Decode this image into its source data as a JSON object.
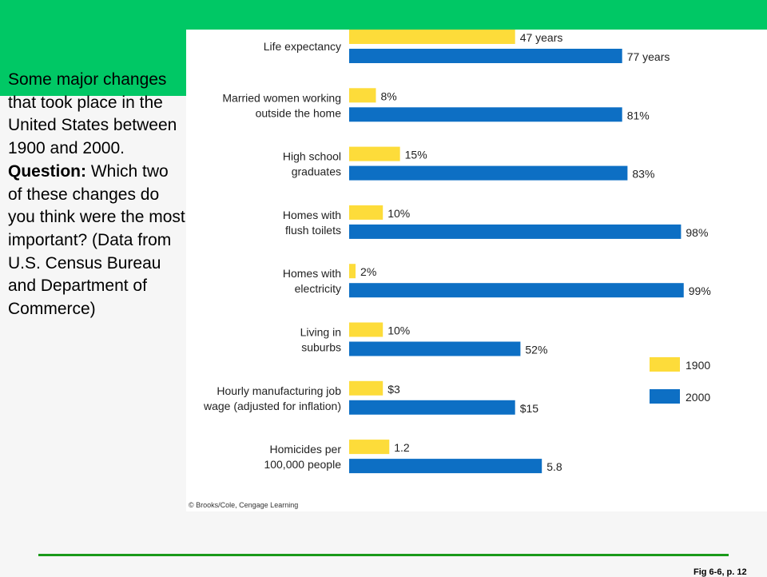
{
  "slide": {
    "intro_text": "Some major changes that took place in the United States between 1900 and 2000.",
    "question_label": "Question:",
    "question_text": "Which two of these changes do you think were the most important? (Data from U.S. Census Bureau and Department of Commerce)",
    "figure_label": "Fig 6-6, p. 12"
  },
  "colors": {
    "green": "#00c865",
    "rule": "#1a9a1a",
    "bar_1900": "#fddc3a",
    "bar_2000": "#0d6fc4"
  },
  "chart_data": {
    "type": "bar",
    "orientation": "horizontal",
    "categories": [
      [
        "Life expectancy"
      ],
      [
        "Married women working",
        "outside the home"
      ],
      [
        "High school",
        "graduates"
      ],
      [
        "Homes with",
        "flush toilets"
      ],
      [
        "Homes with",
        "electricity"
      ],
      [
        "Living in",
        "suburbs"
      ],
      [
        "Hourly manufacturing job",
        "wage (adjusted for inflation)"
      ],
      [
        "Homicides per",
        "100,000 people"
      ]
    ],
    "series": [
      {
        "name": "1900",
        "values": [
          47,
          8,
          15,
          10,
          2,
          10,
          3,
          1.2
        ],
        "labels": [
          "47 years",
          "8%",
          "15%",
          "10%",
          "2%",
          "10%",
          "$3",
          "1.2"
        ]
      },
      {
        "name": "2000",
        "values": [
          77,
          81,
          83,
          98,
          99,
          52,
          15,
          5.8
        ],
        "labels": [
          "77 years",
          "81%",
          "83%",
          "98%",
          "99%",
          "52%",
          "$15",
          "5.8"
        ]
      }
    ],
    "bar_fraction": [
      [
        0.31,
        0.51
      ],
      [
        0.05,
        0.51
      ],
      [
        0.095,
        0.52
      ],
      [
        0.063,
        0.62
      ],
      [
        0.012,
        0.625
      ],
      [
        0.063,
        0.32
      ],
      [
        0.063,
        0.31
      ],
      [
        0.075,
        0.36
      ]
    ],
    "legend": [
      "1900",
      "2000"
    ],
    "legend_position": "right",
    "credit": "© Brooks/Cole, Cengage Learning"
  }
}
